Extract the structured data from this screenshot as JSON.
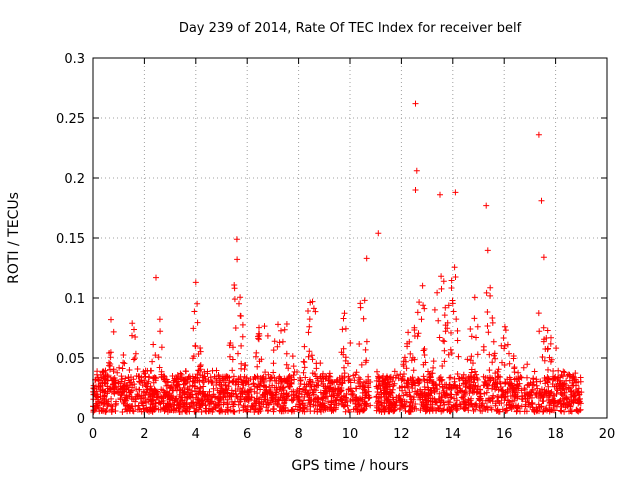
{
  "chart_data": {
    "type": "scatter",
    "title": "Day 239 of 2014, Rate Of TEC Index for receiver belf",
    "xlabel": "GPS time / hours",
    "ylabel": "ROTI / TECUs",
    "xlim": [
      0,
      20
    ],
    "ylim": [
      0,
      0.3
    ],
    "xticks": [
      0,
      2,
      4,
      6,
      8,
      10,
      12,
      14,
      16,
      18,
      20
    ],
    "yticks": [
      0,
      0.05,
      0.1,
      0.15,
      0.2,
      0.25,
      0.3
    ],
    "xtick_labels": [
      "0",
      "2",
      "4",
      "6",
      "8",
      "10",
      "12",
      "14",
      "16",
      "18",
      "20"
    ],
    "ytick_labels": [
      "0",
      "0.05",
      "0.1",
      "0.15",
      "0.2",
      "0.25",
      "0.3"
    ],
    "grid": true,
    "marker": "+",
    "marker_color": "#ff0000",
    "series": [
      {
        "name": "ROTI",
        "x_range": [
          0,
          19.0
        ],
        "data_gap": [
          10.8,
          11.0
        ],
        "baseline": [
          0.005,
          0.035
        ],
        "notable_points": [
          {
            "x": 12.55,
            "y": 0.262
          },
          {
            "x": 12.6,
            "y": 0.206
          },
          {
            "x": 12.55,
            "y": 0.19
          },
          {
            "x": 13.5,
            "y": 0.186
          },
          {
            "x": 14.1,
            "y": 0.188
          },
          {
            "x": 15.3,
            "y": 0.177
          },
          {
            "x": 17.35,
            "y": 0.236
          },
          {
            "x": 17.45,
            "y": 0.181
          },
          {
            "x": 11.1,
            "y": 0.154
          },
          {
            "x": 5.6,
            "y": 0.149
          },
          {
            "x": 4.0,
            "y": 0.113
          },
          {
            "x": 2.45,
            "y": 0.117
          },
          {
            "x": 0.7,
            "y": 0.082
          },
          {
            "x": 10.65,
            "y": 0.133
          }
        ],
        "activity_bursts": [
          {
            "center": 0.9,
            "width": 0.6,
            "peak": 0.07
          },
          {
            "center": 1.5,
            "width": 0.5,
            "peak": 0.075
          },
          {
            "center": 2.5,
            "width": 0.35,
            "peak": 0.1
          },
          {
            "center": 4.0,
            "width": 0.3,
            "peak": 0.1
          },
          {
            "center": 5.6,
            "width": 0.4,
            "peak": 0.13
          },
          {
            "center": 6.6,
            "width": 0.5,
            "peak": 0.09
          },
          {
            "center": 7.4,
            "width": 0.6,
            "peak": 0.1
          },
          {
            "center": 8.5,
            "width": 0.5,
            "peak": 0.1
          },
          {
            "center": 9.8,
            "width": 0.4,
            "peak": 0.09
          },
          {
            "center": 10.5,
            "width": 0.3,
            "peak": 0.11
          },
          {
            "center": 12.2,
            "width": 0.4,
            "peak": 0.07
          },
          {
            "center": 12.7,
            "width": 0.35,
            "peak": 0.15
          },
          {
            "center": 13.5,
            "width": 0.4,
            "peak": 0.14
          },
          {
            "center": 14.0,
            "width": 0.35,
            "peak": 0.13
          },
          {
            "center": 14.8,
            "width": 0.4,
            "peak": 0.1
          },
          {
            "center": 15.4,
            "width": 0.35,
            "peak": 0.14
          },
          {
            "center": 16.1,
            "width": 0.4,
            "peak": 0.1
          },
          {
            "center": 16.8,
            "width": 0.4,
            "peak": 0.06
          },
          {
            "center": 17.5,
            "width": 0.3,
            "peak": 0.14
          },
          {
            "center": 17.9,
            "width": 0.3,
            "peak": 0.085
          }
        ]
      }
    ]
  }
}
